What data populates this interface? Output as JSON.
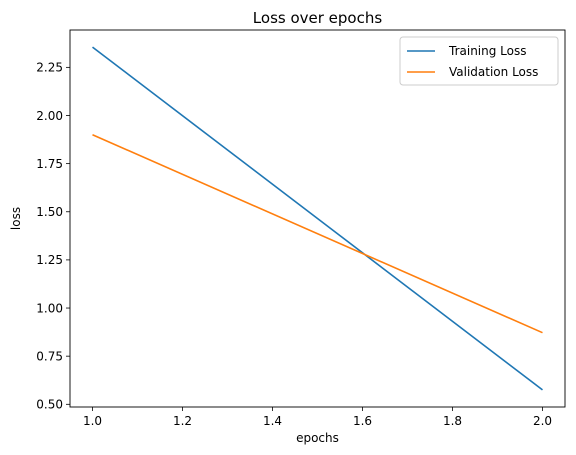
{
  "chart_data": {
    "type": "line",
    "title": "Loss over epochs",
    "xlabel": "epochs",
    "ylabel": "loss",
    "x": [
      1.0,
      2.0
    ],
    "series": [
      {
        "name": "Training Loss",
        "values": [
          2.355,
          0.575
        ],
        "color": "#1f77b4"
      },
      {
        "name": "Validation Loss",
        "values": [
          1.9,
          0.872
        ],
        "color": "#ff7f0e"
      }
    ],
    "xlim": [
      0.95,
      2.05
    ],
    "ylim": [
      0.486,
      2.444
    ],
    "xticks": [
      1.0,
      1.2,
      1.4,
      1.6,
      1.8,
      2.0
    ],
    "xtick_labels": [
      "1.0",
      "1.2",
      "1.4",
      "1.6",
      "1.8",
      "2.0"
    ],
    "yticks": [
      0.5,
      0.75,
      1.0,
      1.25,
      1.5,
      1.75,
      2.0,
      2.25
    ],
    "ytick_labels": [
      "0.50",
      "0.75",
      "1.00",
      "1.25",
      "1.50",
      "1.75",
      "2.00",
      "2.25"
    ],
    "grid": false,
    "legend": "top-right"
  }
}
